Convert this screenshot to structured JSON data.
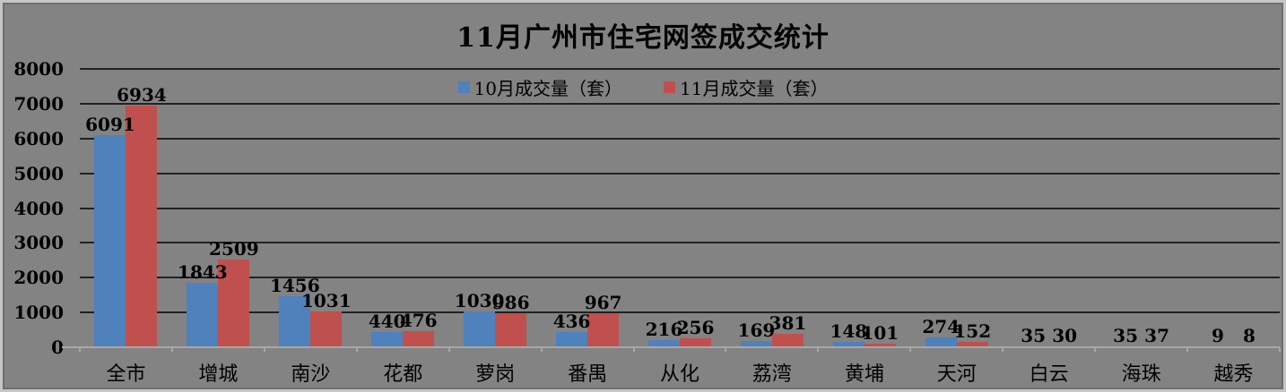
{
  "chart_data": {
    "type": "bar",
    "title": "11月广州市住宅网签成交统计",
    "categories": [
      "全市",
      "增城",
      "南沙",
      "花都",
      "萝岗",
      "番禺",
      "从化",
      "荔湾",
      "黄埔",
      "天河",
      "白云",
      "海珠",
      "越秀"
    ],
    "series": [
      {
        "name": "10月成交量（套）",
        "color": "#4F81BD",
        "values": [
          6091,
          1843,
          1456,
          440,
          1030,
          436,
          216,
          169,
          148,
          274,
          35,
          35,
          9
        ]
      },
      {
        "name": "11月成交量（套）",
        "color": "#C0504D",
        "values": [
          6934,
          2509,
          1031,
          476,
          986,
          967,
          256,
          381,
          101,
          152,
          30,
          37,
          8
        ]
      }
    ],
    "xlabel": "",
    "ylabel": "",
    "ylim": [
      0,
      8000
    ],
    "y_ticks": [
      0,
      1000,
      2000,
      3000,
      4000,
      5000,
      6000,
      7000,
      8000
    ],
    "grid": true,
    "data_labels": true,
    "legend_position": "top-center"
  },
  "colors": {
    "background": "#838383",
    "frame_outer": "#c6c6c6",
    "frame_inner": "#6e6e6e",
    "gridline": "#222222",
    "axis_line": "#a8a8a8",
    "text": "#000000",
    "series_blue": "#4F81BD",
    "series_red": "#C0504D"
  }
}
